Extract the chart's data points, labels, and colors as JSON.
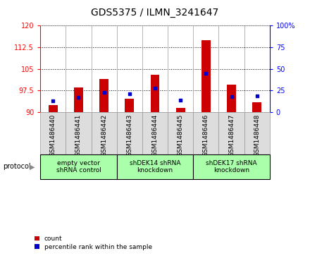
{
  "title": "GDS5375 / ILMN_3241647",
  "samples": [
    "GSM1486440",
    "GSM1486441",
    "GSM1486442",
    "GSM1486443",
    "GSM1486444",
    "GSM1486445",
    "GSM1486446",
    "GSM1486447",
    "GSM1486448"
  ],
  "count_values": [
    92.5,
    98.5,
    101.5,
    94.5,
    103.0,
    91.5,
    115.0,
    99.5,
    93.5
  ],
  "percentile_values": [
    13,
    17,
    23,
    21,
    28,
    14,
    45,
    18,
    19
  ],
  "ylim_left": [
    90,
    120
  ],
  "ylim_right": [
    0,
    100
  ],
  "yticks_left": [
    90,
    97.5,
    105,
    112.5,
    120
  ],
  "yticks_right": [
    0,
    25,
    50,
    75,
    100
  ],
  "bar_color": "#cc0000",
  "dot_color": "#0000cc",
  "bar_bottom": 90,
  "groups": [
    {
      "label": "empty vector\nshRNA control",
      "start": 0,
      "end": 3
    },
    {
      "label": "shDEK14 shRNA\nknockdown",
      "start": 3,
      "end": 6
    },
    {
      "label": "shDEK17 shRNA\nknockdown",
      "start": 6,
      "end": 9
    }
  ],
  "group_color": "#aaffaa",
  "protocol_label": "protocol",
  "legend_count_label": "count",
  "legend_percentile_label": "percentile rank within the sample",
  "background_color": "#ffffff",
  "plot_bg_color": "#ffffff",
  "cell_bg_color": "#dddddd",
  "bar_width": 0.35,
  "title_fontsize": 10,
  "tick_fontsize": 7,
  "sample_fontsize": 6.5,
  "label_fontsize": 7
}
